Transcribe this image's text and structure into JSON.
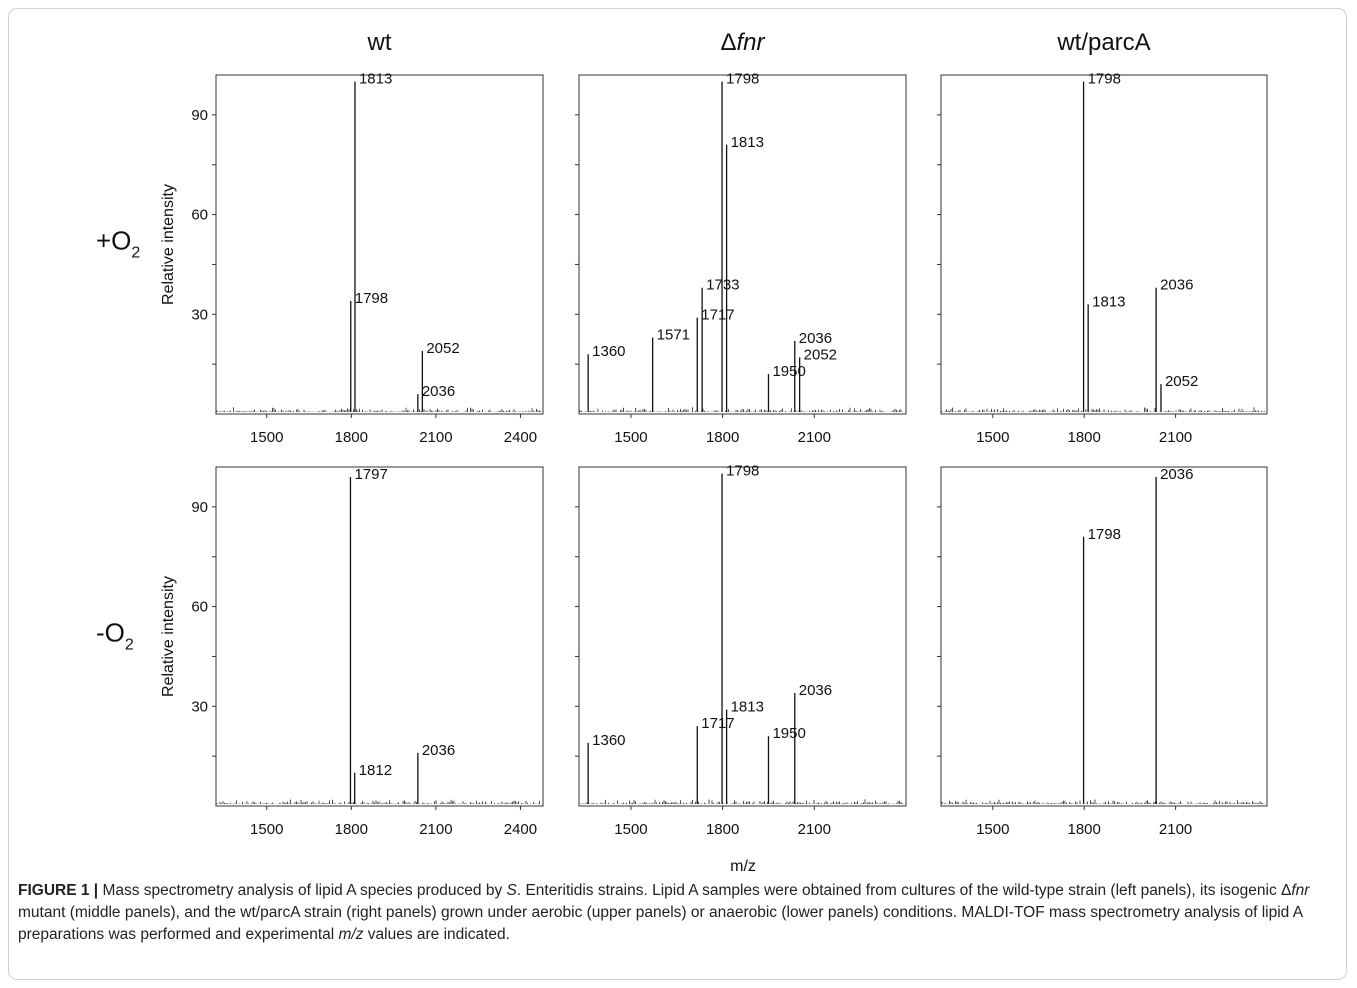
{
  "figure": {
    "column_titles": [
      {
        "text": "wt",
        "prefix": "",
        "italic": ""
      },
      {
        "text": "",
        "prefix": "Δ",
        "italic": "fnr"
      },
      {
        "text": "wt/parcA",
        "prefix": "",
        "italic": ""
      }
    ],
    "row_labels": [
      {
        "sign": "+",
        "base": "O",
        "sub": "2"
      },
      {
        "sign": "-",
        "base": "O",
        "sub": "2"
      }
    ],
    "ylabel": "Relative intensity",
    "xlabel": "m/z"
  },
  "caption": {
    "label": "FIGURE 1 |",
    "t1": " Mass spectrometry analysis of lipid A species produced by ",
    "i1": "S",
    "t2": ". Enteritidis strains. Lipid A samples were obtained from cultures of the wild-type strain (left panels), its isogenic Δ",
    "i2": "fnr",
    "t3": " mutant (middle panels), and the wt/parcA strain (right panels) grown under aerobic (upper panels) or anaerobic (lower panels) conditions. MALDI-TOF mass spectrometry analysis of lipid A preparations was performed and experimental ",
    "i3": "m/z",
    "t4": " values are indicated."
  },
  "chart_data": [
    {
      "type": "line",
      "title": "wt",
      "condition": "+O2",
      "xlim": [
        1320,
        2480
      ],
      "ylim": [
        0,
        102
      ],
      "xticks": [
        1500,
        1800,
        2100,
        2400
      ],
      "yticks": [
        30,
        60,
        90
      ],
      "ylabel": "Relative intensity",
      "peaks": [
        {
          "x": 1798,
          "y": 34,
          "label": "1798"
        },
        {
          "x": 1813,
          "y": 100,
          "label": "1813"
        },
        {
          "x": 2036,
          "y": 6,
          "label": "2036"
        },
        {
          "x": 2052,
          "y": 19,
          "label": "2052"
        }
      ]
    },
    {
      "type": "line",
      "title": "Δfnr",
      "condition": "+O2",
      "xlim": [
        1330,
        2400
      ],
      "ylim": [
        0,
        102
      ],
      "xticks": [
        1500,
        1800,
        2100
      ],
      "yticks": [],
      "peaks": [
        {
          "x": 1360,
          "y": 18,
          "label": "1360"
        },
        {
          "x": 1571,
          "y": 23,
          "label": "1571"
        },
        {
          "x": 1717,
          "y": 29,
          "label": "1717"
        },
        {
          "x": 1733,
          "y": 38,
          "label": "1733"
        },
        {
          "x": 1798,
          "y": 100,
          "label": "1798"
        },
        {
          "x": 1813,
          "y": 81,
          "label": "1813"
        },
        {
          "x": 1950,
          "y": 12,
          "label": "1950"
        },
        {
          "x": 2036,
          "y": 22,
          "label": "2036"
        },
        {
          "x": 2052,
          "y": 17,
          "label": "2052"
        }
      ]
    },
    {
      "type": "line",
      "title": "wt/parcA",
      "condition": "+O2",
      "xlim": [
        1330,
        2400
      ],
      "ylim": [
        0,
        102
      ],
      "xticks": [
        1500,
        1800,
        2100
      ],
      "yticks": [],
      "peaks": [
        {
          "x": 1798,
          "y": 100,
          "label": "1798"
        },
        {
          "x": 1813,
          "y": 33,
          "label": "1813"
        },
        {
          "x": 2036,
          "y": 38,
          "label": "2036"
        },
        {
          "x": 2052,
          "y": 9,
          "label": "2052"
        }
      ]
    },
    {
      "type": "line",
      "title": "wt",
      "condition": "-O2",
      "xlim": [
        1320,
        2480
      ],
      "ylim": [
        0,
        102
      ],
      "xticks": [
        1500,
        1800,
        2100,
        2400
      ],
      "yticks": [
        30,
        60,
        90
      ],
      "ylabel": "Relative intensity",
      "peaks": [
        {
          "x": 1797,
          "y": 99,
          "label": "1797"
        },
        {
          "x": 1812,
          "y": 10,
          "label": "1812"
        },
        {
          "x": 2036,
          "y": 16,
          "label": "2036"
        }
      ]
    },
    {
      "type": "line",
      "title": "Δfnr",
      "condition": "-O2",
      "xlim": [
        1330,
        2400
      ],
      "ylim": [
        0,
        102
      ],
      "xticks": [
        1500,
        1800,
        2100
      ],
      "yticks": [],
      "xlabel": "m/z",
      "peaks": [
        {
          "x": 1360,
          "y": 19,
          "label": "1360"
        },
        {
          "x": 1717,
          "y": 24,
          "label": "1717"
        },
        {
          "x": 1798,
          "y": 100,
          "label": "1798"
        },
        {
          "x": 1813,
          "y": 29,
          "label": "1813"
        },
        {
          "x": 1950,
          "y": 21,
          "label": "1950"
        },
        {
          "x": 2036,
          "y": 34,
          "label": "2036"
        }
      ]
    },
    {
      "type": "line",
      "title": "wt/parcA",
      "condition": "-O2",
      "xlim": [
        1330,
        2400
      ],
      "ylim": [
        0,
        102
      ],
      "xticks": [
        1500,
        1800,
        2100
      ],
      "yticks": [],
      "peaks": [
        {
          "x": 1798,
          "y": 81,
          "label": "1798"
        },
        {
          "x": 2036,
          "y": 99,
          "label": "2036"
        }
      ]
    }
  ]
}
